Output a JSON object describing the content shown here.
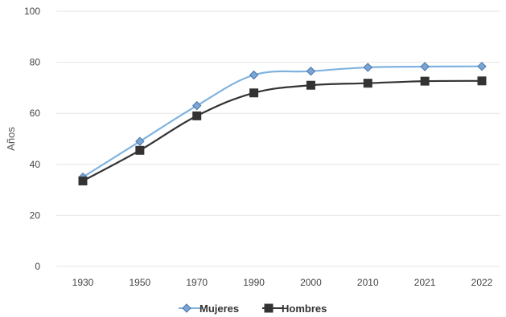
{
  "chart_data": {
    "type": "line",
    "title": "",
    "xlabel": "",
    "ylabel": "Años",
    "categories": [
      "1930",
      "1950",
      "1970",
      "1990",
      "2000",
      "2010",
      "2021",
      "2022"
    ],
    "ylim": [
      0,
      100
    ],
    "yticks": [
      0,
      20,
      40,
      60,
      80,
      100
    ],
    "grid": true,
    "legend": "bottom-center",
    "series": [
      {
        "name": "Mujeres",
        "values": [
          35,
          49,
          63,
          75,
          76.5,
          78,
          78.3,
          78.4
        ],
        "color": "#7fb3df",
        "marker": "diamond",
        "marker_fill": "#7aa6d6",
        "marker_stroke": "#4a74a8"
      },
      {
        "name": "Hombres",
        "values": [
          33.5,
          45.5,
          59,
          68,
          71,
          71.8,
          72.6,
          72.7
        ],
        "color": "#333333",
        "marker": "square",
        "marker_fill": "#333333",
        "marker_stroke": "#333333"
      }
    ],
    "gridline_color": "#e6e6e6"
  }
}
